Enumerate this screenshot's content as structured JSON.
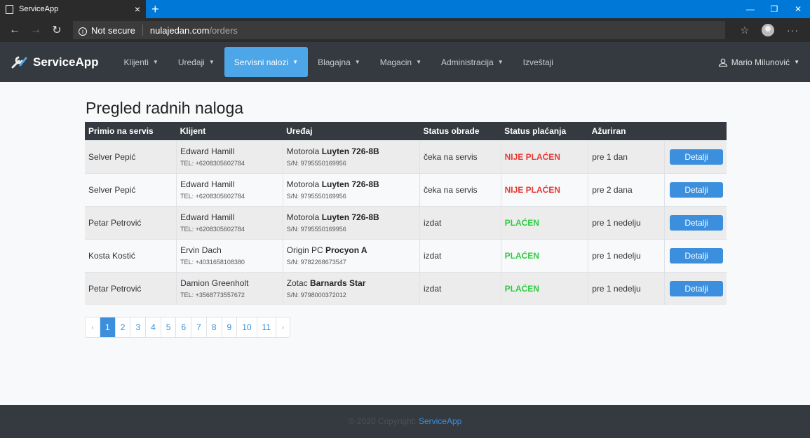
{
  "browser": {
    "tab_title": "ServiceApp",
    "tab_close": "×",
    "new_tab": "+",
    "security_label": "Not secure",
    "url_host": "nulajedan.com",
    "url_path": "/orders",
    "win_minimize": "—",
    "win_restore": "❐",
    "win_close": "✕"
  },
  "navbar": {
    "brand": "ServiceApp",
    "items": [
      {
        "label": "Klijenti"
      },
      {
        "label": "Uređaji"
      },
      {
        "label": "Servisni nalozi"
      },
      {
        "label": "Blagajna"
      },
      {
        "label": "Magacin"
      },
      {
        "label": "Administracija"
      },
      {
        "label": "Izveštaji"
      }
    ],
    "user": "Mario Milunović",
    "caret": "▼"
  },
  "main": {
    "title": "Pregled radnih naloga",
    "columns": [
      "Primio na servis",
      "Klijent",
      "Uređaj",
      "Status obrade",
      "Status plaćanja",
      "Ažuriran",
      ""
    ],
    "rows": [
      {
        "received_by": "Selver Pepić",
        "client": "Edward Hamill",
        "tel": "TEL: +6208305602784",
        "brand": "Motorola",
        "model": "Luyten 726-8B",
        "sn": "S/N: 9795550169956",
        "status": "čeka na servis",
        "payment": "NIJE PLAĆEN",
        "updated": "pre 1 dan",
        "action": "Detalji"
      },
      {
        "received_by": "Selver Pepić",
        "client": "Edward Hamill",
        "tel": "TEL: +6208305602784",
        "brand": "Motorola",
        "model": "Luyten 726-8B",
        "sn": "S/N: 9795550169956",
        "status": "čeka na servis",
        "payment": "NIJE PLAĆEN",
        "updated": "pre 2 dana",
        "action": "Detalji"
      },
      {
        "received_by": "Petar Petrović",
        "client": "Edward Hamill",
        "tel": "TEL: +6208305602784",
        "brand": "Motorola",
        "model": "Luyten 726-8B",
        "sn": "S/N: 9795550169956",
        "status": "izdat",
        "payment": "PLAĆEN",
        "updated": "pre 1 nedelju",
        "action": "Detalji"
      },
      {
        "received_by": "Kosta Kostić",
        "client": "Ervin Dach",
        "tel": "TEL: +4031658108380",
        "brand": "Origin PC",
        "model": "Procyon A",
        "sn": "S/N: 9782268673547",
        "status": "izdat",
        "payment": "PLAĆEN",
        "updated": "pre 1 nedelju",
        "action": "Detalji"
      },
      {
        "received_by": "Petar Petrović",
        "client": "Damion Greenholt",
        "tel": "TEL: +3568773557672",
        "brand": "Zotac",
        "model": "Barnards Star",
        "sn": "S/N: 9798000372012",
        "status": "izdat",
        "payment": "PLAĆEN",
        "updated": "pre 1 nedelju",
        "action": "Detalji"
      }
    ],
    "pagination": {
      "prev": "‹",
      "pages": [
        "1",
        "2",
        "3",
        "4",
        "5",
        "6",
        "7",
        "8",
        "9",
        "10",
        "11"
      ],
      "current": "1",
      "next": "›"
    }
  },
  "footer": {
    "text": "© 2020 Copyright:",
    "link": "ServiceApp"
  },
  "colors": {
    "navbar": "#343a40",
    "accent": "#3b8fdd",
    "unpaid": "#e53935",
    "paid": "#2ecc40"
  }
}
